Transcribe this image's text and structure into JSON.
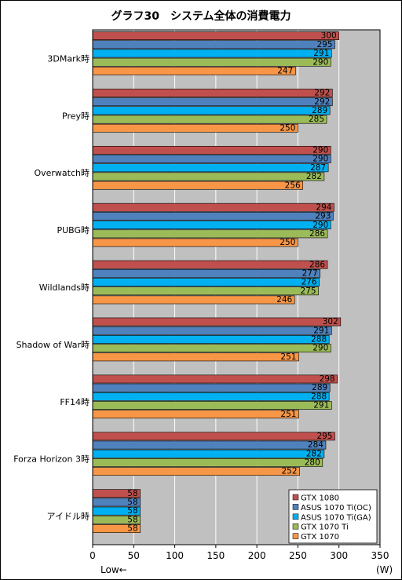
{
  "chart_data": {
    "type": "bar",
    "orientation": "horizontal",
    "title": "グラフ30　システム全体の消費電力",
    "x_unit": "(W)",
    "x_note": "Low←",
    "xlim": [
      0,
      350
    ],
    "xticks": [
      0,
      50,
      100,
      150,
      200,
      250,
      300,
      350
    ],
    "grid": true,
    "legend_position": "bottom-right",
    "categories": [
      "3DMark時",
      "Prey時",
      "Overwatch時",
      "PUBG時",
      "Wildlands時",
      "Shadow of War時",
      "FF14時",
      "Forza Horizon 3時",
      "アイドル時"
    ],
    "series": [
      {
        "name": "GTX 1080",
        "color": "#c0504d",
        "values": [
          300,
          292,
          290,
          294,
          286,
          302,
          298,
          295,
          58
        ]
      },
      {
        "name": "ASUS 1070 Ti(OC)",
        "color": "#4f81bd",
        "values": [
          295,
          292,
          290,
          293,
          277,
          291,
          289,
          284,
          58
        ]
      },
      {
        "name": "ASUS 1070 Ti(GA)",
        "color": "#00b0f0",
        "values": [
          291,
          289,
          287,
          290,
          276,
          288,
          288,
          282,
          58
        ]
      },
      {
        "name": "GTX 1070 Ti",
        "color": "#9bbb59",
        "values": [
          290,
          285,
          282,
          286,
          275,
          290,
          291,
          280,
          58
        ]
      },
      {
        "name": "GTX 1070",
        "color": "#f79646",
        "values": [
          247,
          250,
          256,
          250,
          246,
          251,
          251,
          252,
          58
        ]
      }
    ]
  }
}
